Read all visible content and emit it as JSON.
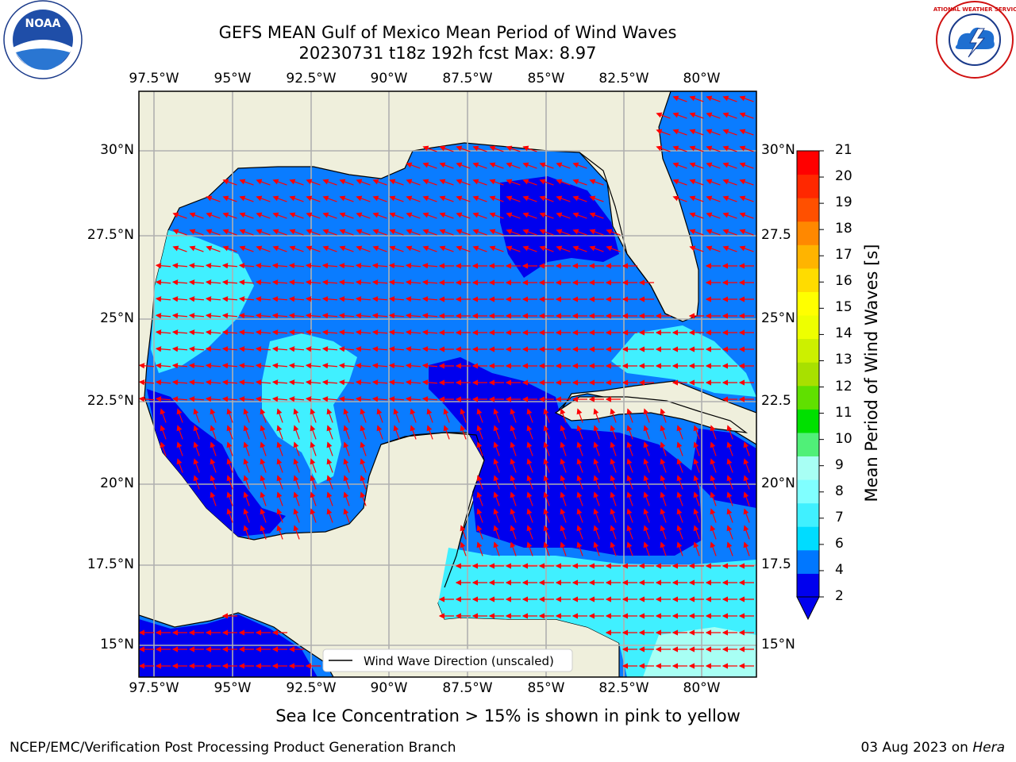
{
  "title_line1": "GEFS MEAN Gulf of Mexico Mean Period of Wind Waves",
  "title_line2": "20230731 t18z 192h fcst   Max: 8.97",
  "lon_labels": [
    "97.5°W",
    "95°W",
    "92.5°W",
    "90°W",
    "87.5°W",
    "85°W",
    "82.5°W",
    "80°W"
  ],
  "lat_labels_left": [
    "30°N",
    "27.5°N",
    "25°N",
    "22.5°N",
    "20°N",
    "17.5°N",
    "15°N"
  ],
  "lat_labels_right": [
    "30°N",
    "27.5",
    "25°N",
    "22.5",
    "20°N",
    "17.5",
    "15°N"
  ],
  "legend_text": "Wind Wave Direction (unscaled)",
  "colorbar": {
    "label": "Mean Period of Wind Waves [s]",
    "ticks": [
      "2",
      "4",
      "6",
      "7",
      "8",
      "9",
      "10",
      "11",
      "12",
      "13",
      "14",
      "15",
      "16",
      "17",
      "18",
      "19",
      "20",
      "21"
    ],
    "colors": [
      "#0000ee",
      "#0077ff",
      "#00dcff",
      "#40f0ff",
      "#80ffff",
      "#a8fff4",
      "#50f078",
      "#00e000",
      "#60e000",
      "#a8e000",
      "#ccf000",
      "#eeff00",
      "#ffff00",
      "#ffdc00",
      "#ffb400",
      "#ff8800",
      "#ff5000",
      "#ff2800",
      "#ff0000"
    ]
  },
  "note": "Sea Ice Concentration > 15% is shown in pink to yellow",
  "footer_left": "NCEP/EMC/Verification Post Processing Product Generation Branch",
  "footer_date": "03 Aug 2023 on",
  "footer_host": "Hera",
  "logos": {
    "left": "NOAA",
    "right": "NATIONAL WEATHER SERVICE"
  },
  "colors": {
    "land": "#efefdc",
    "arrow": "#ff0000",
    "grid": "#b0b0b0"
  }
}
